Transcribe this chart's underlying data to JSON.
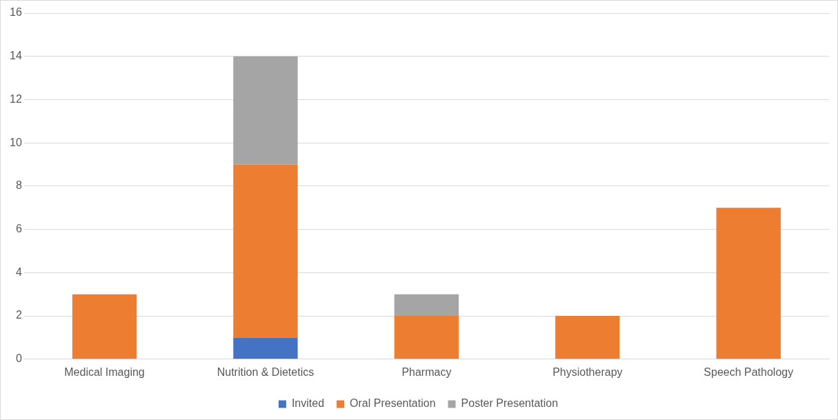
{
  "chart_data": {
    "type": "bar",
    "stacked": true,
    "categories": [
      "Medical Imaging",
      "Nutrition & Dietetics",
      "Pharmacy",
      "Physiotherapy",
      "Speech Pathology"
    ],
    "series": [
      {
        "name": "Invited",
        "color": "#4472c4",
        "values": [
          0,
          1,
          0,
          0,
          0
        ]
      },
      {
        "name": "Oral Presentation",
        "color": "#ed7d31",
        "values": [
          3,
          8,
          2,
          2,
          7
        ]
      },
      {
        "name": "Poster Presentation",
        "color": "#a5a5a5",
        "values": [
          0,
          5,
          1,
          0,
          0
        ]
      }
    ],
    "ylim": [
      0,
      16
    ],
    "yticks": [
      0,
      2,
      4,
      6,
      8,
      10,
      12,
      14,
      16
    ],
    "grid": "y",
    "legend": "bottom"
  }
}
